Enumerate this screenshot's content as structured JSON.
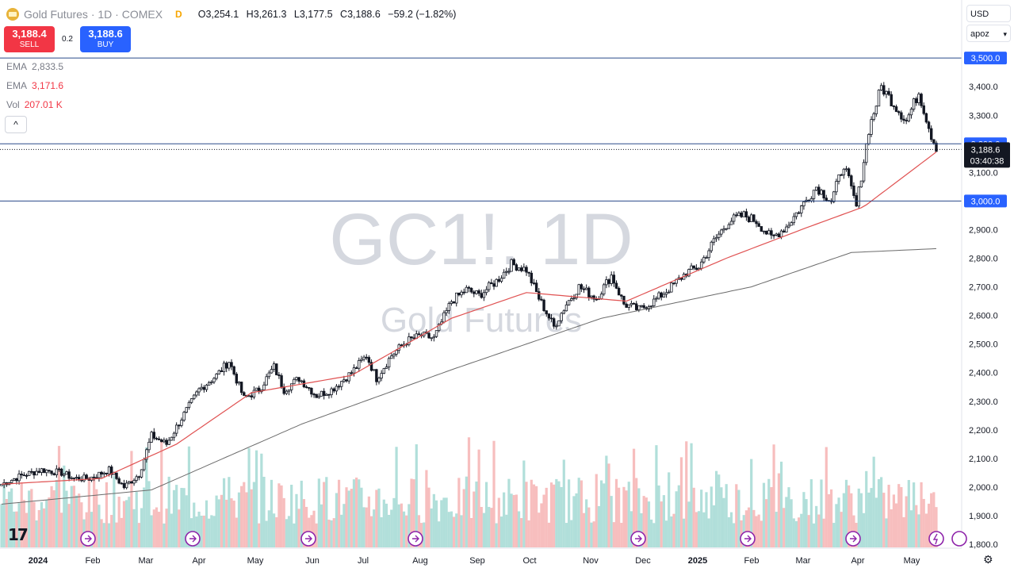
{
  "header": {
    "title": "Gold Futures · 1D · COMEX",
    "badge": "D",
    "ohlc": {
      "o_label": "O",
      "o": "3,254.1",
      "h_label": "H",
      "h": "3,261.3",
      "l_label": "L",
      "l": "3,177.5",
      "c_label": "C",
      "c": "3,188.6",
      "change": "−59.2 (−1.82%)"
    }
  },
  "trade": {
    "sell_price": "3,188.4",
    "sell_label": "SELL",
    "spread": "0.2",
    "buy_price": "3,188.6",
    "buy_label": "BUY"
  },
  "indicators": [
    {
      "name": "EMA",
      "value": "2,833.5"
    },
    {
      "name": "EMA",
      "value": "3,171.6"
    },
    {
      "name": "Vol",
      "value": "207.01 K"
    }
  ],
  "controls": {
    "collapse": "^",
    "currency": "USD",
    "scale_mode": "apoz"
  },
  "watermark": {
    "symbol": "GC1!, 1D",
    "name": "Gold Futures"
  },
  "colors": {
    "up": "#089981",
    "down": "#f23645",
    "candle": "#131722",
    "ema_fast": "#e05252",
    "ema_slow": "#6b6b6b",
    "vol_up": "#a8dcd6",
    "vol_down": "#f6b7b7",
    "hline": "#2a4a8a"
  },
  "chart_data": {
    "type": "candlestick",
    "symbol": "GC1!",
    "interval": "1D",
    "y_ticks": [
      "3,400.0",
      "3,300.0",
      "3,100.0",
      "2,900.0",
      "2,800.0",
      "2,700.0",
      "2,600.0",
      "2,500.0",
      "2,400.0",
      "2,300.0",
      "2,200.0",
      "2,100.0",
      "2,000.0",
      "1,900.0",
      "1,800.0"
    ],
    "y_tick_values": [
      3400,
      3300,
      3100,
      2900,
      2800,
      2700,
      2600,
      2500,
      2400,
      2300,
      2200,
      2100,
      2000,
      1900,
      1800
    ],
    "x_labels": [
      "2024",
      "Feb",
      "Mar",
      "Apr",
      "May",
      "Jun",
      "Jul",
      "Aug",
      "Sep",
      "Oct",
      "Nov",
      "Dec",
      "2025",
      "Feb",
      "Mar",
      "Apr",
      "May"
    ],
    "horizontal_levels": [
      {
        "label": "3,500.0",
        "value": 3500
      },
      {
        "label": "3,200.0",
        "value": 3200
      },
      {
        "label": "3,000.0",
        "value": 3000
      }
    ],
    "last_price": {
      "label": "3,188.6",
      "value": 3188.6,
      "countdown": "03:40:38"
    },
    "close_path": [
      [
        0,
        2010
      ],
      [
        8,
        2040
      ],
      [
        16,
        2060
      ],
      [
        24,
        2050
      ],
      [
        29,
        2030
      ],
      [
        35,
        2030
      ],
      [
        43,
        2060
      ],
      [
        49,
        2000
      ],
      [
        55,
        2045
      ],
      [
        60,
        2180
      ],
      [
        66,
        2150
      ],
      [
        72,
        2240
      ],
      [
        79,
        2340
      ],
      [
        86,
        2390
      ],
      [
        91,
        2440
      ],
      [
        97,
        2310
      ],
      [
        103,
        2340
      ],
      [
        109,
        2420
      ],
      [
        113,
        2340
      ],
      [
        119,
        2380
      ],
      [
        126,
        2320
      ],
      [
        132,
        2340
      ],
      [
        140,
        2400
      ],
      [
        146,
        2460
      ],
      [
        150,
        2380
      ],
      [
        156,
        2460
      ],
      [
        162,
        2510
      ],
      [
        168,
        2530
      ],
      [
        173,
        2520
      ],
      [
        180,
        2650
      ],
      [
        186,
        2690
      ],
      [
        191,
        2670
      ],
      [
        198,
        2720
      ],
      [
        204,
        2780
      ],
      [
        210,
        2760
      ],
      [
        215,
        2660
      ],
      [
        221,
        2560
      ],
      [
        226,
        2640
      ],
      [
        231,
        2700
      ],
      [
        238,
        2660
      ],
      [
        244,
        2740
      ],
      [
        249,
        2640
      ],
      [
        255,
        2620
      ],
      [
        261,
        2650
      ],
      [
        268,
        2700
      ],
      [
        274,
        2750
      ],
      [
        279,
        2770
      ],
      [
        285,
        2860
      ],
      [
        291,
        2930
      ],
      [
        297,
        2950
      ],
      [
        302,
        2930
      ],
      [
        308,
        2870
      ],
      [
        314,
        2910
      ],
      [
        320,
        2980
      ],
      [
        326,
        3050
      ],
      [
        332,
        3000
      ],
      [
        337,
        3130
      ],
      [
        342,
        2980
      ],
      [
        347,
        3250
      ],
      [
        352,
        3400
      ],
      [
        357,
        3340
      ],
      [
        362,
        3280
      ],
      [
        367,
        3380
      ],
      [
        372,
        3230
      ],
      [
        374,
        3188.6
      ]
    ],
    "ema_slow_points": [
      [
        0,
        1940
      ],
      [
        60,
        1990
      ],
      [
        120,
        2220
      ],
      [
        180,
        2410
      ],
      [
        240,
        2590
      ],
      [
        300,
        2700
      ],
      [
        340,
        2820
      ],
      [
        374,
        2833.5
      ]
    ],
    "ema_fast_points": [
      [
        0,
        2010
      ],
      [
        40,
        2030
      ],
      [
        70,
        2150
      ],
      [
        100,
        2330
      ],
      [
        140,
        2390
      ],
      [
        180,
        2590
      ],
      [
        210,
        2680
      ],
      [
        250,
        2650
      ],
      [
        290,
        2800
      ],
      [
        320,
        2900
      ],
      [
        345,
        2980
      ],
      [
        374,
        3171.6
      ]
    ]
  }
}
